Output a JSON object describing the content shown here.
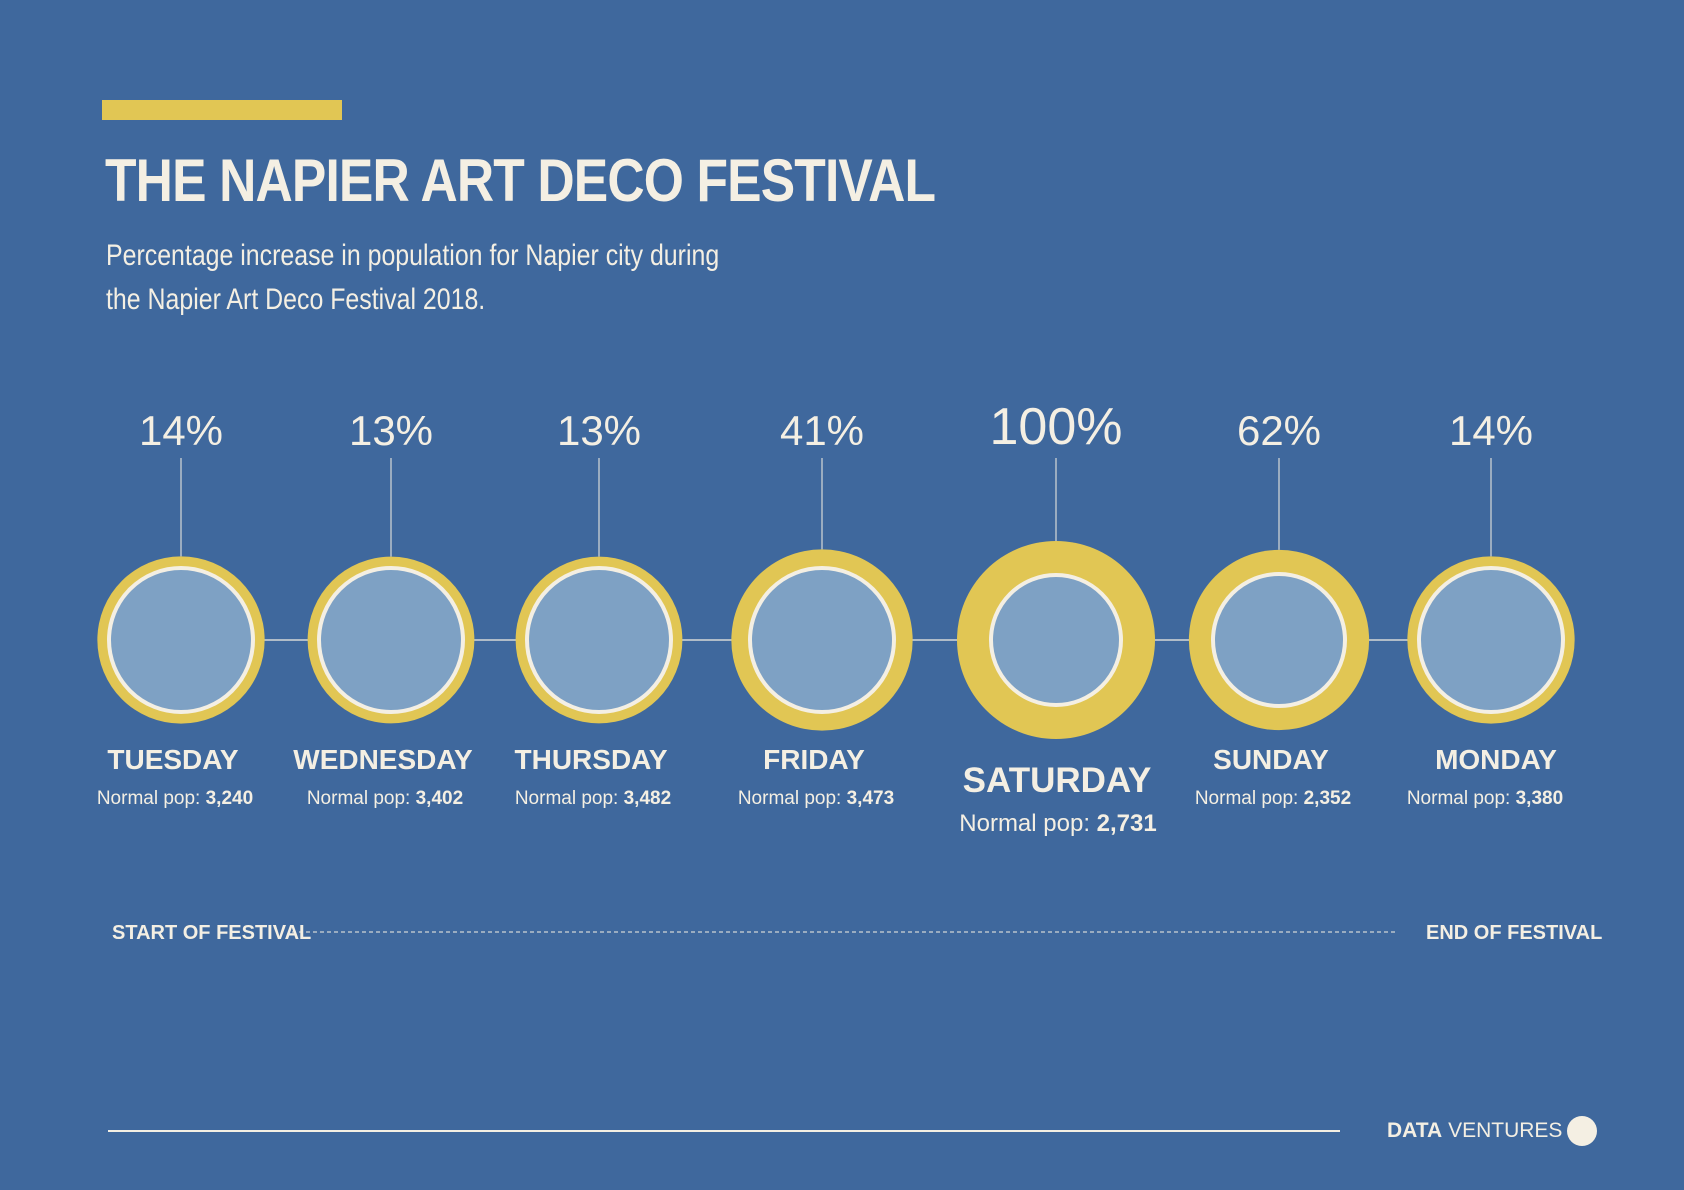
{
  "header": {
    "title": "THE NAPIER ART DECO FESTIVAL",
    "subtitle": "Percentage increase in population for Napier city during the Napier Art Deco Festival 2018."
  },
  "chart_data": {
    "type": "bubble",
    "title": "THE NAPIER ART DECO FESTIVAL",
    "subtitle": "Percentage increase in population for Napier city during the Napier Art Deco Festival 2018.",
    "unit": "%",
    "pop_label": "Normal pop:",
    "days": [
      {
        "day": "TUESDAY",
        "pct_label": "14%",
        "increase": 14,
        "normal_pop": "3,240"
      },
      {
        "day": "WEDNESDAY",
        "pct_label": "13%",
        "increase": 13,
        "normal_pop": "3,402"
      },
      {
        "day": "THURSDAY",
        "pct_label": "13%",
        "increase": 13,
        "normal_pop": "3,482"
      },
      {
        "day": "FRIDAY",
        "pct_label": "41%",
        "increase": 41,
        "normal_pop": "3,473"
      },
      {
        "day": "SATURDAY",
        "pct_label": "100%",
        "increase": 100,
        "normal_pop": "2,731"
      },
      {
        "day": "SUNDAY",
        "pct_label": "62%",
        "increase": 62,
        "normal_pop": "2,352"
      },
      {
        "day": "MONDAY",
        "pct_label": "14%",
        "increase": 14,
        "normal_pop": "3,380"
      }
    ],
    "highlight_day": "SATURDAY",
    "timeline": {
      "start_label": "START OF FESTIVAL",
      "end_label": "END OF FESTIVAL"
    }
  },
  "footer": {
    "brand_bold": "DATA",
    "brand_light": "VENTURES"
  },
  "colors": {
    "background": "#3f689d",
    "accent": "#e1c654",
    "inner": "#7ea1c4",
    "text": "#f4efe3"
  }
}
